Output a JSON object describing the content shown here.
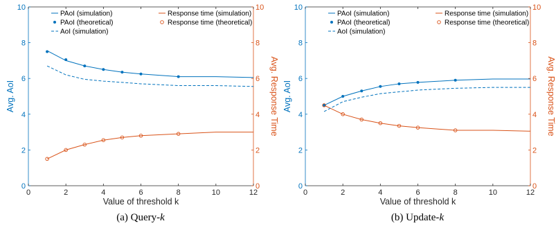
{
  "colors": {
    "aoi": "#0072BD",
    "response": "#D95319"
  },
  "chart_data": [
    {
      "type": "line",
      "caption_prefix": "(a)  Query-",
      "caption_var": "k",
      "xlabel": "Value of threshold k",
      "ylabel_left": "Avg. AoI",
      "ylabel_right": "Avg. Response Time",
      "xlim": [
        0,
        12
      ],
      "ylim_left": [
        0,
        10
      ],
      "ylim_right": [
        0,
        10
      ],
      "xticks": [
        0,
        2,
        4,
        6,
        8,
        10,
        12
      ],
      "yticks": [
        0,
        2,
        4,
        6,
        8,
        10
      ],
      "x": [
        1,
        2,
        3,
        4,
        5,
        6,
        8,
        10,
        12
      ],
      "series": [
        {
          "name": "PAoI (simulation)",
          "axis": "left",
          "style": "solid",
          "color_key": "aoi",
          "values": [
            7.55,
            7.0,
            6.7,
            6.5,
            6.35,
            6.25,
            6.1,
            6.1,
            6.05
          ]
        },
        {
          "name": "Response time (simulation)",
          "axis": "right",
          "style": "solid",
          "color_key": "response",
          "values": [
            1.5,
            2.0,
            2.3,
            2.55,
            2.7,
            2.8,
            2.9,
            3.0,
            3.0
          ]
        },
        {
          "name": "PAoI (theoretical)",
          "axis": "left",
          "style": "dots",
          "color_key": "aoi",
          "x": [
            1,
            2,
            3,
            4,
            5,
            6,
            8
          ],
          "values": [
            7.5,
            7.05,
            6.7,
            6.5,
            6.35,
            6.25,
            6.1
          ]
        },
        {
          "name": "Response time (theoretical)",
          "axis": "right",
          "style": "circles",
          "color_key": "response",
          "x": [
            1,
            2,
            3,
            4,
            5,
            6,
            8
          ],
          "values": [
            1.5,
            2.0,
            2.3,
            2.55,
            2.7,
            2.8,
            2.9
          ]
        },
        {
          "name": "AoI (simulation)",
          "axis": "left",
          "style": "dashed",
          "color_key": "aoi",
          "values": [
            6.7,
            6.2,
            5.95,
            5.85,
            5.78,
            5.7,
            5.6,
            5.6,
            5.55
          ]
        }
      ],
      "legend": "top-right"
    },
    {
      "type": "line",
      "caption_prefix": "(b)  Update-",
      "caption_var": "k",
      "xlabel": "Value of threshold k",
      "ylabel_left": "Avg. AoI",
      "ylabel_right": "Avg. Response Time",
      "xlim": [
        0,
        12
      ],
      "ylim_left": [
        0,
        10
      ],
      "ylim_right": [
        0,
        10
      ],
      "xticks": [
        0,
        2,
        4,
        6,
        8,
        10,
        12
      ],
      "yticks": [
        0,
        2,
        4,
        6,
        8,
        10
      ],
      "x": [
        1,
        2,
        3,
        4,
        5,
        6,
        8,
        10,
        12
      ],
      "series": [
        {
          "name": "PAoI (simulation)",
          "axis": "left",
          "style": "solid",
          "color_key": "aoi",
          "values": [
            4.5,
            5.0,
            5.3,
            5.55,
            5.7,
            5.78,
            5.9,
            5.97,
            5.97
          ]
        },
        {
          "name": "Response time (simulation)",
          "axis": "right",
          "style": "solid",
          "color_key": "response",
          "values": [
            4.5,
            4.0,
            3.7,
            3.5,
            3.35,
            3.25,
            3.1,
            3.1,
            3.05
          ]
        },
        {
          "name": "PAoI (theoretical)",
          "axis": "left",
          "style": "dots",
          "color_key": "aoi",
          "x": [
            1,
            2,
            3,
            4,
            5,
            6,
            8
          ],
          "values": [
            4.5,
            5.0,
            5.3,
            5.55,
            5.7,
            5.78,
            5.9
          ]
        },
        {
          "name": "Response time (theoretical)",
          "axis": "right",
          "style": "circles",
          "color_key": "response",
          "x": [
            1,
            2,
            3,
            4,
            5,
            6,
            8
          ],
          "values": [
            4.5,
            4.0,
            3.7,
            3.5,
            3.35,
            3.25,
            3.1
          ]
        },
        {
          "name": "AoI (simulation)",
          "axis": "left",
          "style": "dashed",
          "color_key": "aoi",
          "values": [
            4.15,
            4.7,
            4.95,
            5.15,
            5.25,
            5.35,
            5.45,
            5.5,
            5.5
          ]
        }
      ],
      "legend": "top-right"
    }
  ]
}
